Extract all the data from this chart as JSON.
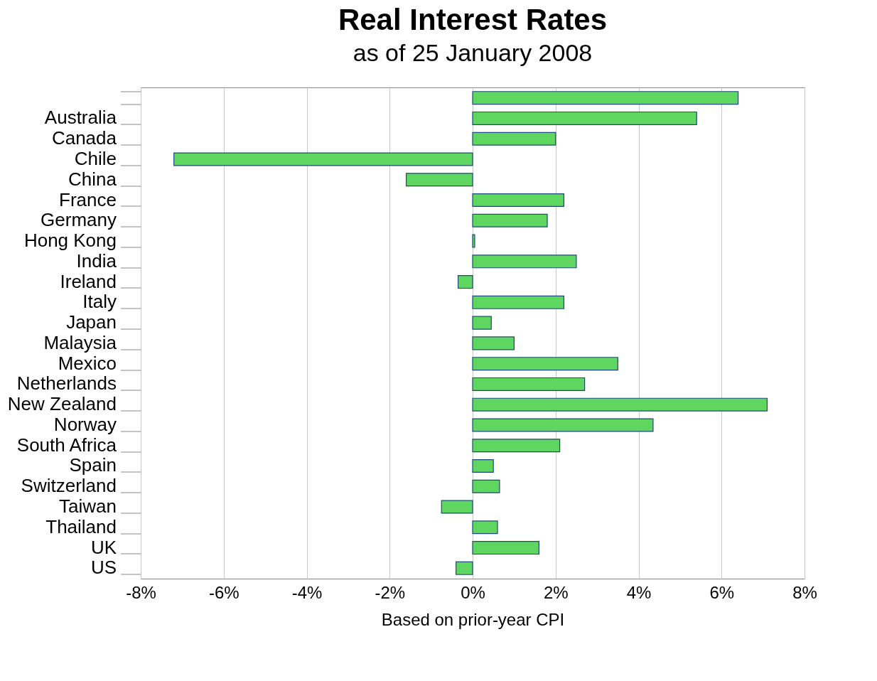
{
  "chart_data": {
    "type": "bar",
    "orientation": "horizontal",
    "title": "Real Interest Rates",
    "subtitle": "as of 25 January 2008",
    "xlabel": "Based on prior-year CPI",
    "categories": [
      null,
      "Australia",
      "Canada",
      "Chile",
      "China",
      "France",
      "Germany",
      "Hong Kong",
      "India",
      "Ireland",
      "Italy",
      "Japan",
      "Malaysia",
      "Mexico",
      "Netherlands",
      "New Zealand",
      "Norway",
      "South Africa",
      "Spain",
      "Switzerland",
      "Taiwan",
      "Thailand",
      "UK",
      "US"
    ],
    "values": [
      6.4,
      5.4,
      2.0,
      -7.2,
      -1.6,
      2.2,
      1.8,
      0.05,
      2.5,
      -0.35,
      2.2,
      0.45,
      1.0,
      3.5,
      2.7,
      7.1,
      4.35,
      2.1,
      0.5,
      0.65,
      -0.75,
      0.6,
      1.6,
      -0.4
    ],
    "color": "#5fd65f",
    "xlim": [
      -8,
      8
    ],
    "xticks": [
      {
        "value": -8,
        "label": "-8%"
      },
      {
        "value": -6,
        "label": "-6%"
      },
      {
        "value": -4,
        "label": "-4%"
      },
      {
        "value": -2,
        "label": "-2%"
      },
      {
        "value": 0,
        "label": "0%"
      },
      {
        "value": 2,
        "label": "2%"
      },
      {
        "value": 4,
        "label": "4%"
      },
      {
        "value": 6,
        "label": "6%"
      },
      {
        "value": 8,
        "label": "8%"
      }
    ],
    "grid": "x"
  }
}
